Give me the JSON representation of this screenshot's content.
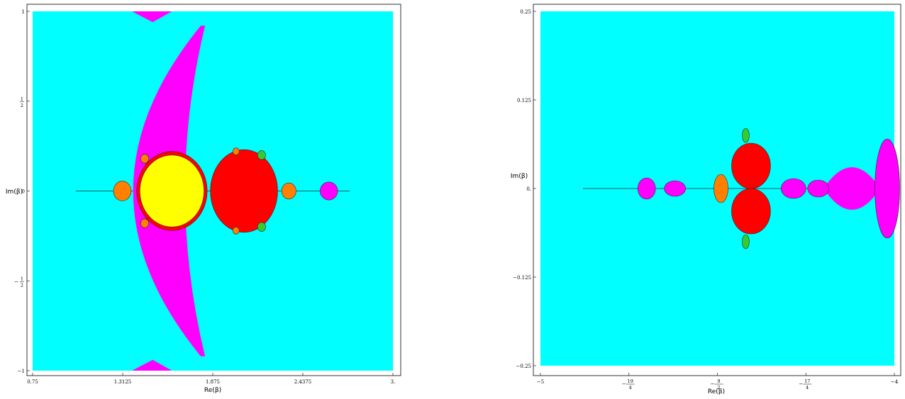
{
  "colors": {
    "background": "#00ffff",
    "magenta": "#ff00ff",
    "red": "#ff0000",
    "yellow": "#ffff00",
    "orange": "#ff8000",
    "green": "#33cc33",
    "dark": "#2a2a2a"
  },
  "chart_data": [
    {
      "type": "heatmap",
      "title": "",
      "xlabel": "Re(β)",
      "ylabel": "Im(β)",
      "xlim": [
        0.75,
        3
      ],
      "ylim": [
        -1,
        1
      ],
      "x_ticks": [
        {
          "value": 0.75,
          "label": "0.75"
        },
        {
          "value": 1.3125,
          "label": "1.3125"
        },
        {
          "value": 1.875,
          "label": "1.875"
        },
        {
          "value": 2.4375,
          "label": "2.4375"
        },
        {
          "value": 3,
          "label": "3."
        }
      ],
      "y_ticks": [
        {
          "value": -1,
          "label": "−1",
          "type": "plain"
        },
        {
          "value": -0.5,
          "label": "−",
          "num": "1",
          "den": "2",
          "type": "frac"
        },
        {
          "value": 0,
          "label": "0",
          "type": "plain"
        },
        {
          "value": 0.5,
          "label": "",
          "num": "1",
          "den": "2",
          "type": "frac"
        },
        {
          "value": 1,
          "label": "1",
          "type": "plain"
        }
      ],
      "regions": {
        "outer_wedge": {
          "color": "magenta",
          "x_left": 1.0,
          "x_right": 1.8,
          "y_half_height": 0.92
        },
        "bulbs": [
          {
            "color": "red",
            "cx": 1.62,
            "cy": 0,
            "rx": 0.22,
            "ry": 0.22
          },
          {
            "color": "yellow",
            "cx": 1.62,
            "cy": 0,
            "rx": 0.2,
            "ry": 0.2
          },
          {
            "color": "red",
            "cx": 2.07,
            "cy": 0,
            "rx": 0.21,
            "ry": 0.23
          },
          {
            "color": "orange",
            "cx": 1.31,
            "cy": 0,
            "rx": 0.055,
            "ry": 0.055
          },
          {
            "color": "orange",
            "cx": 2.35,
            "cy": 0,
            "rx": 0.045,
            "ry": 0.045
          },
          {
            "color": "magenta",
            "cx": 2.6,
            "cy": 0,
            "rx": 0.055,
            "ry": 0.05
          },
          {
            "color": "green",
            "cx": 2.18,
            "cy": 0.2,
            "rx": 0.025,
            "ry": 0.025
          },
          {
            "color": "green",
            "cx": 2.18,
            "cy": -0.2,
            "rx": 0.025,
            "ry": 0.025
          },
          {
            "color": "orange",
            "cx": 2.02,
            "cy": 0.22,
            "rx": 0.02,
            "ry": 0.02
          },
          {
            "color": "orange",
            "cx": 2.02,
            "cy": -0.22,
            "rx": 0.02,
            "ry": 0.02
          },
          {
            "color": "orange",
            "cx": 1.45,
            "cy": 0.18,
            "rx": 0.025,
            "ry": 0.025
          },
          {
            "color": "orange",
            "cx": 1.45,
            "cy": -0.18,
            "rx": 0.025,
            "ry": 0.025
          }
        ]
      }
    },
    {
      "type": "heatmap",
      "title": "",
      "xlabel": "Re(β)",
      "ylabel": "Im(β)",
      "xlim": [
        -5,
        -4
      ],
      "ylim": [
        -0.25,
        0.25
      ],
      "x_ticks": [
        {
          "value": -5,
          "label": "−5",
          "type": "plain"
        },
        {
          "value": -4.75,
          "label": "−",
          "num": "19",
          "den": "4",
          "type": "frac"
        },
        {
          "value": -4.5,
          "label": "−",
          "num": "9",
          "den": "2",
          "type": "frac"
        },
        {
          "value": -4.25,
          "label": "−",
          "num": "17",
          "den": "4",
          "type": "frac"
        },
        {
          "value": -4,
          "label": "−4",
          "type": "plain"
        }
      ],
      "y_ticks": [
        {
          "value": -0.25,
          "label": "−0.25",
          "type": "plain"
        },
        {
          "value": -0.125,
          "label": "−0.125",
          "type": "plain"
        },
        {
          "value": 0,
          "label": "0.",
          "type": "plain"
        },
        {
          "value": 0.125,
          "label": "0.125",
          "type": "plain"
        },
        {
          "value": 0.25,
          "label": "0.25",
          "type": "plain"
        }
      ],
      "regions": {
        "bulbs": [
          {
            "color": "red",
            "cx": -4.405,
            "cy": 0.032,
            "rx": 0.055,
            "ry": 0.032
          },
          {
            "color": "red",
            "cx": -4.405,
            "cy": -0.032,
            "rx": 0.055,
            "ry": 0.032
          },
          {
            "color": "orange",
            "cx": -4.49,
            "cy": 0,
            "rx": 0.02,
            "ry": 0.02
          },
          {
            "color": "green",
            "cx": -4.42,
            "cy": 0.075,
            "rx": 0.01,
            "ry": 0.01
          },
          {
            "color": "green",
            "cx": -4.42,
            "cy": -0.075,
            "rx": 0.01,
            "ry": 0.01
          },
          {
            "color": "magenta",
            "cx": -4.62,
            "cy": 0,
            "rx": 0.03,
            "ry": 0.011
          },
          {
            "color": "magenta",
            "cx": -4.7,
            "cy": 0,
            "rx": 0.025,
            "ry": 0.015
          },
          {
            "color": "magenta",
            "cx": -4.285,
            "cy": 0,
            "rx": 0.035,
            "ry": 0.014
          },
          {
            "color": "magenta",
            "cx": -4.215,
            "cy": 0,
            "rx": 0.03,
            "ry": 0.012
          },
          {
            "color": "magenta",
            "cx": -4.02,
            "cy": 0,
            "rx": 0.035,
            "ry": 0.07
          }
        ],
        "spindle": {
          "color": "magenta",
          "x_left": -4.2,
          "x_right": -4.04,
          "y_half_height": 0.05
        }
      }
    }
  ]
}
